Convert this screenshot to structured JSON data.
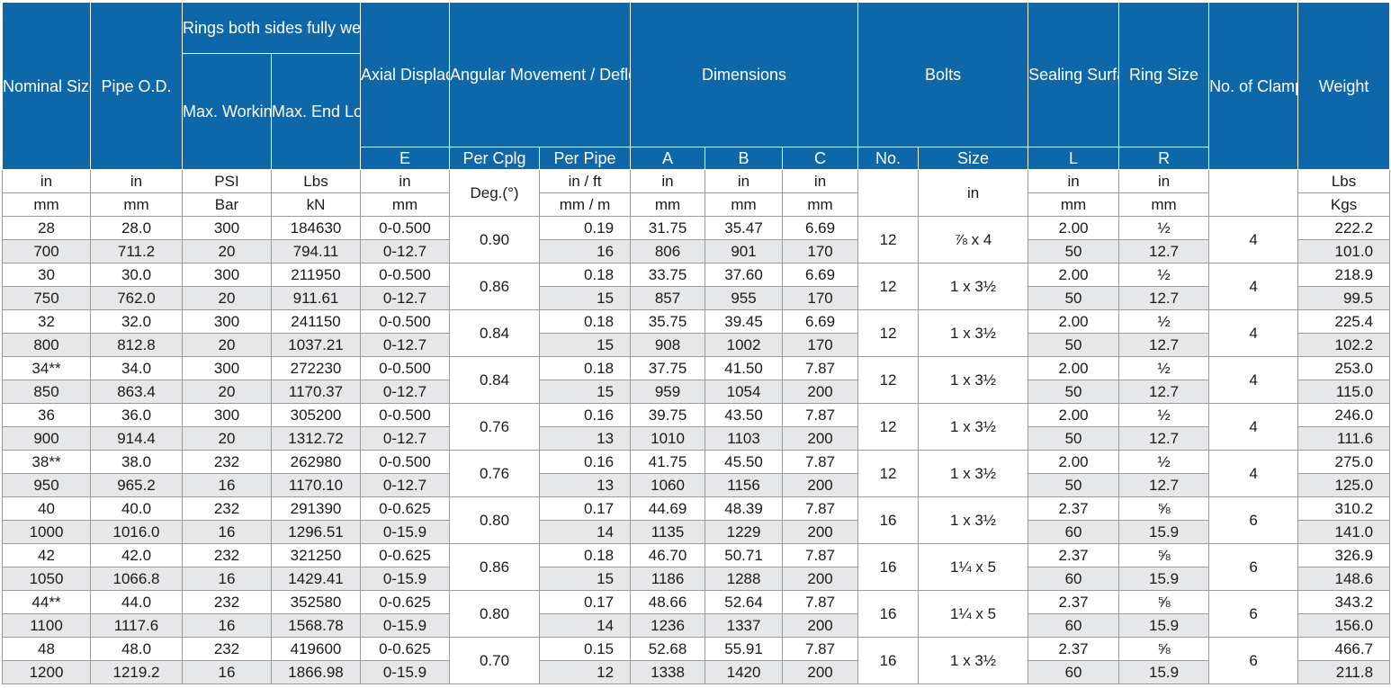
{
  "headers": {
    "nominal_size": "Nominal Size",
    "pipe_od": "Pipe O.D.",
    "rings_group": "Rings both sides fully welded*",
    "max_working_pressure": "Max. Working Pressure (CWP)#",
    "max_end_load": "Max. End Load (CWP)#",
    "axial_displacement": "Axial Displace-ment †",
    "axial_letter": "E",
    "angular_movement": "Angular Movement / Deflection †",
    "per_cplg": "Per Cplg",
    "per_pipe": "Per  Pipe",
    "dimensions": "Dimensions",
    "dim_a": "A",
    "dim_b": "B",
    "dim_c": "C",
    "bolts": "Bolts",
    "bolts_no": "No.",
    "bolts_size": "Size",
    "sealing_surface": "Sealing Surface",
    "sealing_letter": "L",
    "ring_size": "Ring Size",
    "ring_letter": "R",
    "no_of_clamps": "No. of Clamps‡",
    "weight": "Weight"
  },
  "units": {
    "imperial": [
      "in",
      "in",
      "PSI",
      "Lbs",
      "in",
      "Deg.(°)",
      "in / ft",
      "in",
      "in",
      "in",
      "",
      "in",
      "in",
      "in",
      "",
      "Lbs"
    ],
    "metric": [
      "mm",
      "mm",
      "Bar",
      "kN",
      "mm",
      "",
      "mm /  m",
      "mm",
      "mm",
      "mm",
      "",
      "",
      "mm",
      "mm",
      "",
      "Kgs"
    ]
  },
  "rows": [
    {
      "imperial": [
        "28",
        "28.0",
        "300",
        "184630",
        "0-0.500",
        "0.19",
        "31.75",
        "35.47",
        "6.69",
        "2.00",
        "½",
        "222.2"
      ],
      "metric": [
        "700",
        "711.2",
        "20",
        "794.11",
        "0-12.7",
        "16",
        "806",
        "901",
        "170",
        "50",
        "12.7",
        "101.0"
      ],
      "deflection": "0.90",
      "bolt_no": "12",
      "bolt_size": "⅞ x 4",
      "clamps": "4"
    },
    {
      "imperial": [
        "30",
        "30.0",
        "300",
        "211950",
        "0-0.500",
        "0.18",
        "33.75",
        "37.60",
        "6.69",
        "2.00",
        "½",
        "218.9"
      ],
      "metric": [
        "750",
        "762.0",
        "20",
        "911.61",
        "0-12.7",
        "15",
        "857",
        "955",
        "170",
        "50",
        "12.7",
        "99.5"
      ],
      "deflection": "0.86",
      "bolt_no": "12",
      "bolt_size": "1 x 3½",
      "clamps": "4"
    },
    {
      "imperial": [
        "32",
        "32.0",
        "300",
        "241150",
        "0-0.500",
        "0.18",
        "35.75",
        "39.45",
        "6.69",
        "2.00",
        "½",
        "225.4"
      ],
      "metric": [
        "800",
        "812.8",
        "20",
        "1037.21",
        "0-12.7",
        "15",
        "908",
        "1002",
        "170",
        "50",
        "12.7",
        "102.2"
      ],
      "deflection": "0.84",
      "bolt_no": "12",
      "bolt_size": "1 x 3½",
      "clamps": "4"
    },
    {
      "imperial": [
        "34**",
        "34.0",
        "300",
        "272230",
        "0-0.500",
        "0.18",
        "37.75",
        "41.50",
        "7.87",
        "2.00",
        "½",
        "253.0"
      ],
      "metric": [
        "850",
        "863.4",
        "20",
        "1170.37",
        "0-12.7",
        "15",
        "959",
        "1054",
        "200",
        "50",
        "12.7",
        "115.0"
      ],
      "deflection": "0.84",
      "bolt_no": "12",
      "bolt_size": "1 x 3½",
      "clamps": "4"
    },
    {
      "imperial": [
        "36",
        "36.0",
        "300",
        "305200",
        "0-0.500",
        "0.16",
        "39.75",
        "43.50",
        "7.87",
        "2.00",
        "½",
        "246.0"
      ],
      "metric": [
        "900",
        "914.4",
        "20",
        "1312.72",
        "0-12.7",
        "13",
        "1010",
        "1103",
        "200",
        "50",
        "12.7",
        "111.6"
      ],
      "deflection": "0.76",
      "bolt_no": "12",
      "bolt_size": "1 x 3½",
      "clamps": "4"
    },
    {
      "imperial": [
        "38**",
        "38.0",
        "232",
        "262980",
        "0-0.500",
        "0.16",
        "41.75",
        "45.50",
        "7.87",
        "2.00",
        "½",
        "275.0"
      ],
      "metric": [
        "950",
        "965.2",
        "16",
        "1170.10",
        "0-12.7",
        "13",
        "1060",
        "1156",
        "200",
        "50",
        "12.7",
        "125.0"
      ],
      "deflection": "0.76",
      "bolt_no": "12",
      "bolt_size": "1 x 3½",
      "clamps": "4"
    },
    {
      "imperial": [
        "40",
        "40.0",
        "232",
        "291390",
        "0-0.625",
        "0.17",
        "44.69",
        "48.39",
        "7.87",
        "2.37",
        "⅝",
        "310.2"
      ],
      "metric": [
        "1000",
        "1016.0",
        "16",
        "1296.51",
        "0-15.9",
        "14",
        "1135",
        "1229",
        "200",
        "60",
        "15.9",
        "141.0"
      ],
      "deflection": "0.80",
      "bolt_no": "16",
      "bolt_size": "1 x 3½",
      "clamps": "6"
    },
    {
      "imperial": [
        "42",
        "42.0",
        "232",
        "321250",
        "0-0.625",
        "0.18",
        "46.70",
        "50.71",
        "7.87",
        "2.37",
        "⅝",
        "326.9"
      ],
      "metric": [
        "1050",
        "1066.8",
        "16",
        "1429.41",
        "0-15.9",
        "15",
        "1186",
        "1288",
        "200",
        "60",
        "15.9",
        "148.6"
      ],
      "deflection": "0.86",
      "bolt_no": "16",
      "bolt_size": "1¼ x 5",
      "clamps": "6"
    },
    {
      "imperial": [
        "44**",
        "44.0",
        "232",
        "352580",
        "0-0.625",
        "0.17",
        "48.66",
        "52.64",
        "7.87",
        "2.37",
        "⅝",
        "343.2"
      ],
      "metric": [
        "1100",
        "1117.6",
        "16",
        "1568.78",
        "0-15.9",
        "14",
        "1236",
        "1337",
        "200",
        "60",
        "15.9",
        "156.0"
      ],
      "deflection": "0.80",
      "bolt_no": "16",
      "bolt_size": "1¼ x 5",
      "clamps": "6"
    },
    {
      "imperial": [
        "48",
        "48.0",
        "232",
        "419600",
        "0-0.625",
        "0.15",
        "52.68",
        "55.91",
        "7.87",
        "2.37",
        "⅝",
        "466.7"
      ],
      "metric": [
        "1200",
        "1219.2",
        "16",
        "1866.98",
        "0-15.9",
        "12",
        "1338",
        "1420",
        "200",
        "60",
        "15.9",
        "211.8"
      ],
      "deflection": "0.70",
      "bolt_no": "16",
      "bolt_size": "1 x 3½",
      "clamps": "6"
    }
  ]
}
